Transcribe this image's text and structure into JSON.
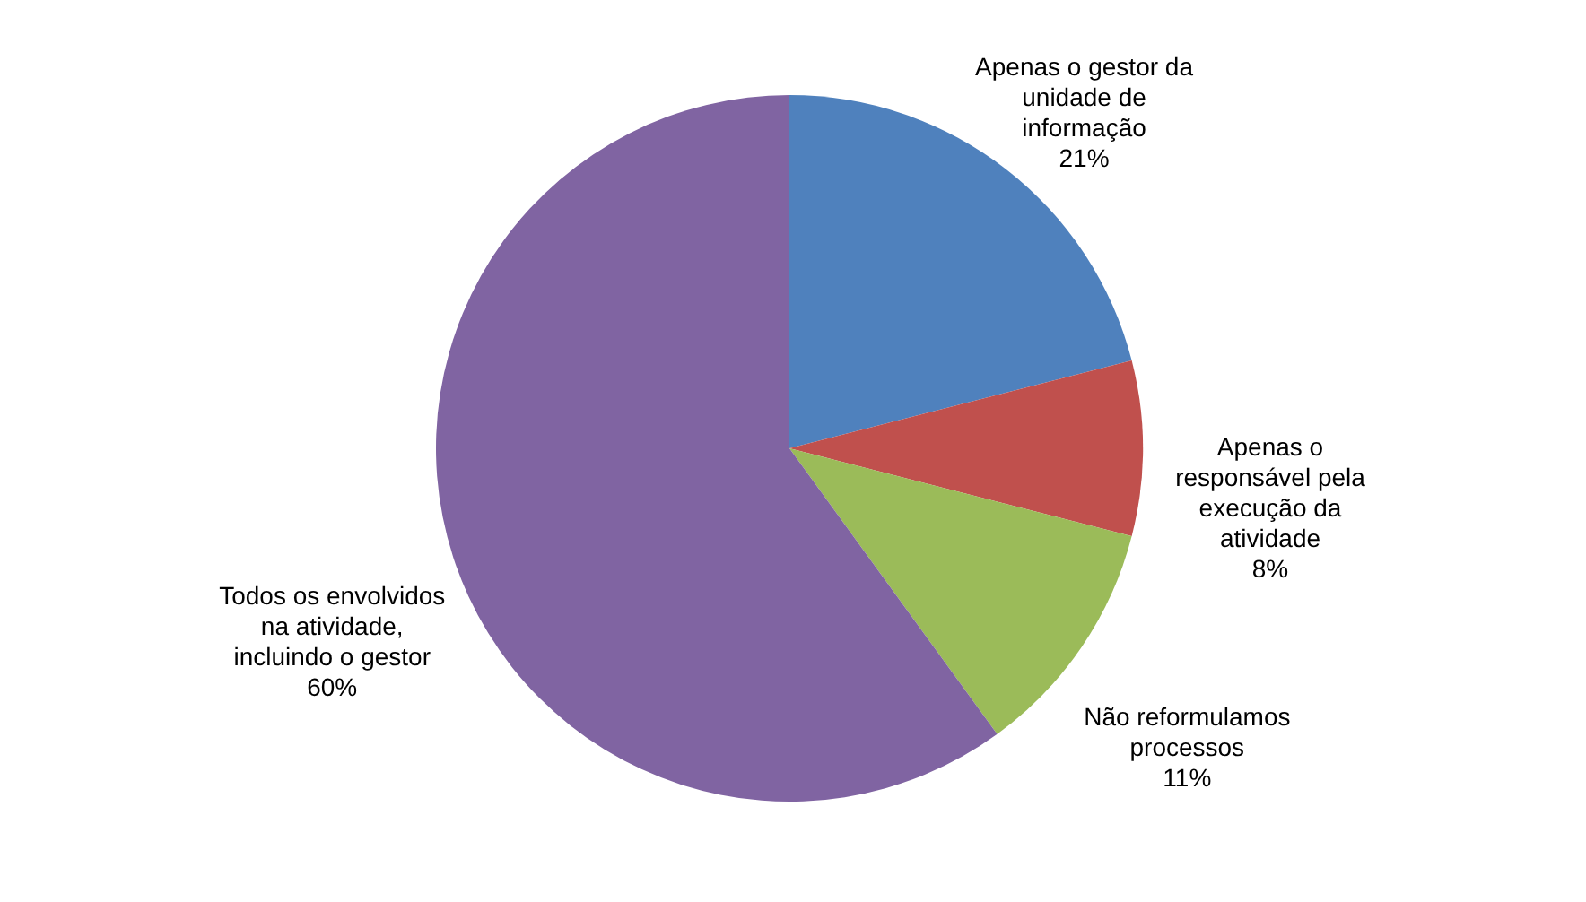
{
  "chart_data": {
    "type": "pie",
    "categories": [
      "Apenas o gestor da\nunidade de\ninformação",
      "Apenas o\nresponsável pela\nexecução da\natividade",
      "Não reformulamos\nprocessos",
      "Todos os envolvidos\nna atividade,\nincluindo o gestor"
    ],
    "values": [
      21,
      8,
      11,
      60
    ],
    "value_labels": [
      "21%",
      "8%",
      "11%",
      "60%"
    ],
    "colors": [
      "#4f81bd",
      "#c0504d",
      "#9bbb59",
      "#8064a2"
    ]
  }
}
